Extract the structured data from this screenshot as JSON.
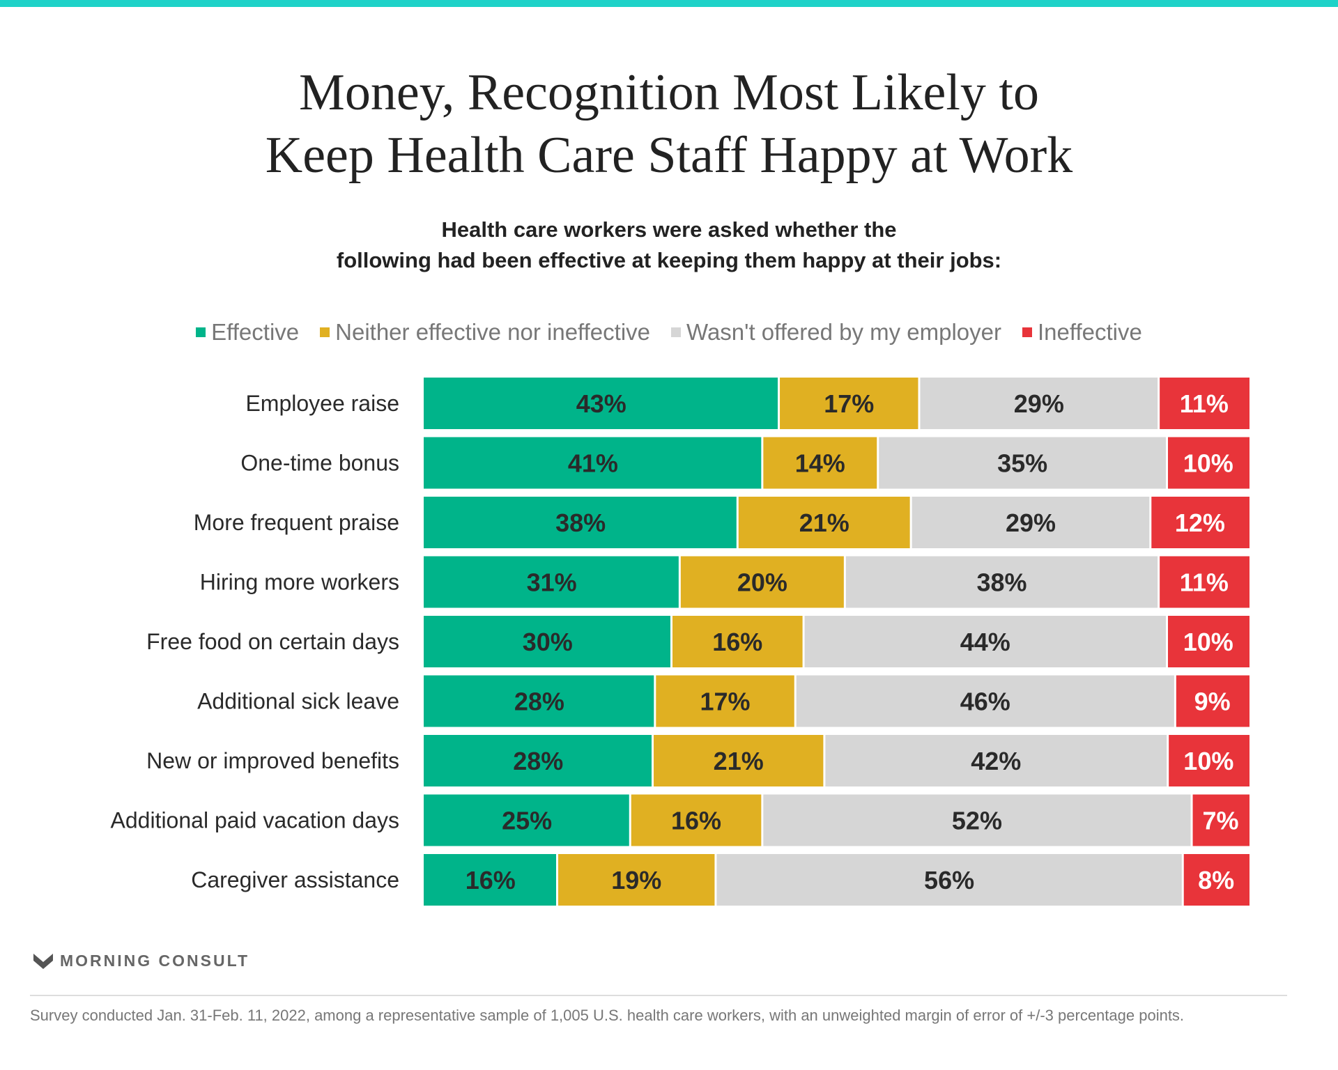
{
  "title_lines": [
    "Money, Recognition Most Likely to",
    "Keep Health Care Staff Happy at Work"
  ],
  "subtitle_lines": [
    "Health care workers were asked whether the",
    "following had been effective at keeping them happy at their jobs:"
  ],
  "colors": {
    "accent_top": "#1ed2c8",
    "effective": "#00b48a",
    "neither": "#e0b022",
    "not_offered": "#d6d6d6",
    "ineffective": "#e8343a"
  },
  "chart_data": {
    "type": "bar",
    "orientation": "horizontal",
    "stacked": true,
    "percent": true,
    "legend_position": "top",
    "categories": [
      "Employee raise",
      "One-time bonus",
      "More frequent praise",
      "Hiring more workers",
      "Free food on certain days",
      "Additional sick leave",
      "New or improved benefits",
      "Additional paid vacation days",
      "Caregiver assistance"
    ],
    "series": [
      {
        "name": "Effective",
        "values": [
          43,
          41,
          38,
          31,
          30,
          28,
          28,
          25,
          16
        ]
      },
      {
        "name": "Neither effective nor ineffective",
        "values": [
          17,
          14,
          21,
          20,
          16,
          17,
          21,
          16,
          19
        ]
      },
      {
        "name": "Wasn't offered by my employer",
        "values": [
          29,
          35,
          29,
          38,
          44,
          46,
          42,
          52,
          56
        ]
      },
      {
        "name": "Ineffective",
        "values": [
          11,
          10,
          12,
          11,
          10,
          9,
          10,
          7,
          8
        ]
      }
    ]
  },
  "logo": {
    "text": "MORNING CONSULT",
    "icon": "morning-consult-m-icon"
  },
  "footnote": "Survey conducted Jan. 31-Feb. 11, 2022, among a representative sample of 1,005 U.S. health care workers, with an unweighted margin of error of +/-3 percentage points."
}
